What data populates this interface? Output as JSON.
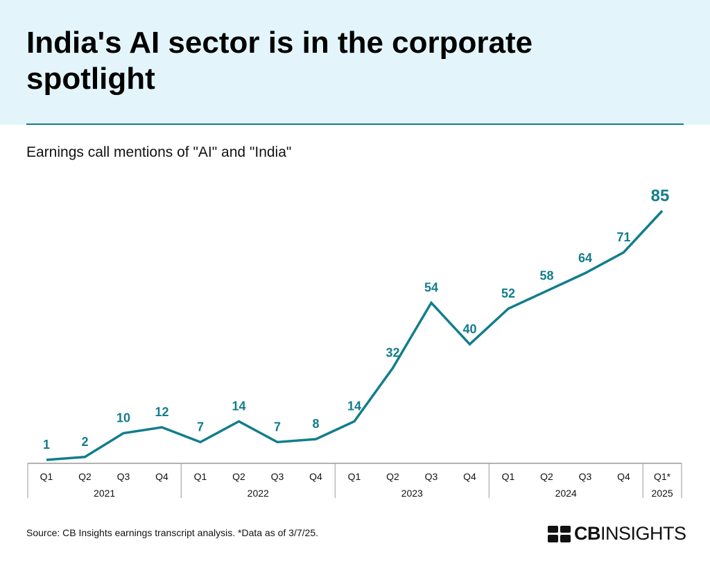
{
  "title": "India's AI sector is in the corporate spotlight",
  "subtitle": "Earnings call mentions of \"AI\" and \"India\"",
  "source": "Source: CB Insights earnings transcript analysis. *Data as of 3/7/25.",
  "logo": {
    "bold": "CB",
    "regular": "INSIGHTS"
  },
  "colors": {
    "accent": "#127d8c",
    "header_bg": "#e3f5fa"
  },
  "chart_data": {
    "type": "line",
    "categories": [
      "Q1",
      "Q2",
      "Q3",
      "Q4",
      "Q1",
      "Q2",
      "Q3",
      "Q4",
      "Q1",
      "Q2",
      "Q3",
      "Q4",
      "Q1",
      "Q2",
      "Q3",
      "Q4",
      "Q1*"
    ],
    "years": [
      {
        "label": "2021",
        "quarters": 4
      },
      {
        "label": "2022",
        "quarters": 4
      },
      {
        "label": "2023",
        "quarters": 4
      },
      {
        "label": "2024",
        "quarters": 4
      },
      {
        "label": "2025",
        "quarters": 1
      }
    ],
    "values": [
      1,
      2,
      10,
      12,
      7,
      14,
      7,
      8,
      14,
      32,
      54,
      40,
      52,
      58,
      64,
      71,
      85
    ],
    "ylim": [
      0,
      85
    ],
    "grid": false,
    "data_labels": true
  }
}
